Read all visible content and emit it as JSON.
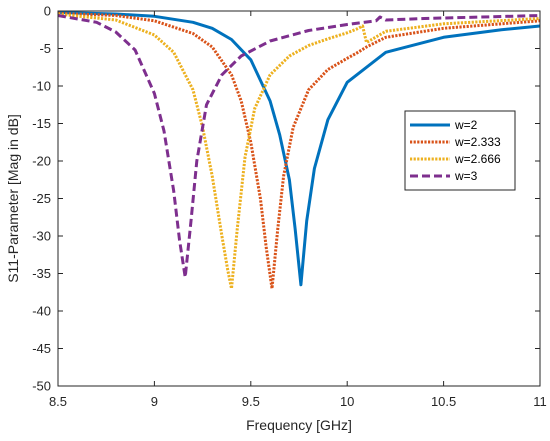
{
  "chart_data": {
    "type": "line",
    "title": "",
    "xlabel": "Frequency [GHz]",
    "ylabel": "S11-Parameter [Mag in dB]",
    "xlim": [
      8.5,
      11
    ],
    "ylim": [
      -50,
      0
    ],
    "xticks": [
      8.5,
      9,
      9.5,
      10,
      10.5,
      11
    ],
    "xtick_labels": [
      "8.5",
      "9",
      "9.5",
      "10",
      "10.5",
      "11"
    ],
    "yticks": [
      0,
      -5,
      -10,
      -15,
      -20,
      -25,
      -30,
      -35,
      -40,
      -45,
      -50
    ],
    "ytick_labels": [
      "0",
      "-5",
      "-10",
      "-15",
      "-20",
      "-25",
      "-30",
      "-35",
      "-40",
      "-45",
      "-50"
    ],
    "grid": false,
    "legend_position": "right",
    "series": [
      {
        "name": "w=2",
        "color": "#0072BD",
        "style": "solid",
        "x": [
          8.5,
          8.8,
          9.0,
          9.2,
          9.3,
          9.4,
          9.5,
          9.6,
          9.65,
          9.7,
          9.73,
          9.76,
          9.79,
          9.83,
          9.9,
          10.0,
          10.2,
          10.5,
          10.8,
          11.0
        ],
        "y": [
          -0.2,
          -0.4,
          -0.7,
          -1.5,
          -2.3,
          -3.8,
          -6.5,
          -12.0,
          -16.5,
          -22.5,
          -29.0,
          -36.5,
          -28.0,
          -21.0,
          -14.5,
          -9.5,
          -5.5,
          -3.5,
          -2.5,
          -2.0
        ]
      },
      {
        "name": "w=2.333",
        "color": "#D95319",
        "style": "dotted",
        "x": [
          8.5,
          8.8,
          9.0,
          9.2,
          9.3,
          9.4,
          9.45,
          9.5,
          9.55,
          9.58,
          9.61,
          9.64,
          9.67,
          9.72,
          9.8,
          9.9,
          10.0,
          10.05,
          10.1,
          10.2,
          10.5,
          11.0
        ],
        "y": [
          -0.3,
          -0.6,
          -1.3,
          -3.0,
          -4.8,
          -8.5,
          -12.0,
          -17.5,
          -25.0,
          -31.5,
          -37.0,
          -29.0,
          -22.0,
          -15.5,
          -10.5,
          -7.8,
          -6.3,
          -5.6,
          -4.8,
          -3.5,
          -2.3,
          -1.3
        ]
      },
      {
        "name": "w=2.666",
        "color": "#EDB120",
        "style": "dotted",
        "x": [
          8.5,
          8.8,
          9.0,
          9.1,
          9.2,
          9.25,
          9.3,
          9.35,
          9.38,
          9.4,
          9.43,
          9.47,
          9.52,
          9.6,
          9.7,
          9.8,
          9.9,
          10.0,
          10.05,
          10.08,
          10.1,
          10.2,
          10.5,
          11.0
        ],
        "y": [
          -0.4,
          -1.2,
          -3.2,
          -5.5,
          -10.5,
          -15.5,
          -22.0,
          -30.0,
          -34.5,
          -37.0,
          -29.0,
          -19.5,
          -13.0,
          -8.5,
          -6.0,
          -4.6,
          -3.7,
          -2.9,
          -2.4,
          -2.0,
          -4.2,
          -2.7,
          -1.7,
          -1.0
        ]
      },
      {
        "name": "w=3",
        "color": "#7E2F8E",
        "style": "dashed",
        "x": [
          8.5,
          8.7,
          8.8,
          8.9,
          9.0,
          9.05,
          9.1,
          9.13,
          9.16,
          9.19,
          9.22,
          9.27,
          9.35,
          9.45,
          9.6,
          9.8,
          10.0,
          10.15,
          10.17,
          10.2,
          10.4,
          11.0
        ],
        "y": [
          -0.6,
          -1.5,
          -2.8,
          -5.2,
          -11.0,
          -16.0,
          -24.0,
          -30.5,
          -35.5,
          -28.0,
          -20.0,
          -12.5,
          -8.5,
          -6.0,
          -4.0,
          -2.6,
          -1.8,
          -1.3,
          -0.8,
          -1.2,
          -1.0,
          -0.6
        ]
      }
    ]
  }
}
